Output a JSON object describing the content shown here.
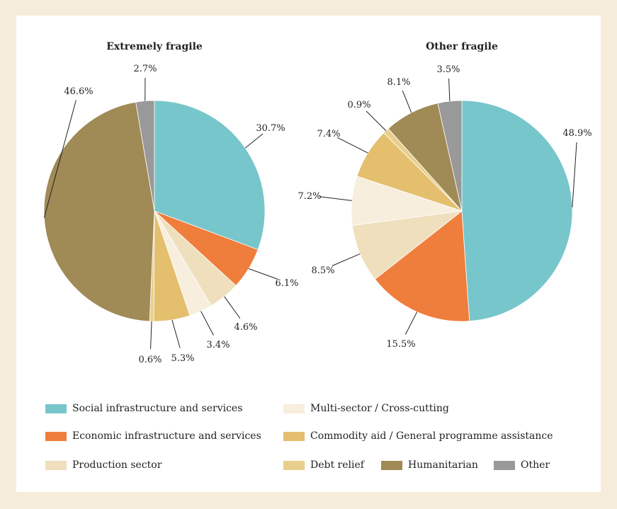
{
  "chart_data": [
    {
      "type": "pie",
      "title": "Extremely fragile",
      "slices": [
        {
          "label": "Social infrastructure and services",
          "value": 30.7,
          "display": "30.7%"
        },
        {
          "label": "Economic infrastructure and services",
          "value": 6.1,
          "display": "6.1%"
        },
        {
          "label": "Production sector",
          "value": 4.6,
          "display": "4.6%"
        },
        {
          "label": "Multi-sector / Cross-cutting",
          "value": 3.4,
          "display": "3.4%"
        },
        {
          "label": "Commodity aid / General programme assistance",
          "value": 5.3,
          "display": "5.3%"
        },
        {
          "label": "Debt relief",
          "value": 0.6,
          "display": "0.6%"
        },
        {
          "label": "Humanitarian",
          "value": 46.6,
          "display": "46.6%"
        },
        {
          "label": "Other",
          "value": 2.7,
          "display": "2.7%"
        }
      ]
    },
    {
      "type": "pie",
      "title": "Other fragile",
      "slices": [
        {
          "label": "Social infrastructure and services",
          "value": 48.9,
          "display": "48.9%"
        },
        {
          "label": "Economic infrastructure and services",
          "value": 15.5,
          "display": "15.5%"
        },
        {
          "label": "Production sector",
          "value": 8.5,
          "display": "8.5%"
        },
        {
          "label": "Multi-sector / Cross-cutting",
          "value": 7.2,
          "display": "7.2%"
        },
        {
          "label": "Commodity aid / General programme assistance",
          "value": 7.4,
          "display": "7.4%"
        },
        {
          "label": "Debt relief",
          "value": 0.9,
          "display": "0.9%"
        },
        {
          "label": "Humanitarian",
          "value": 8.1,
          "display": "8.1%"
        },
        {
          "label": "Other",
          "value": 3.5,
          "display": "3.5%"
        }
      ]
    }
  ],
  "legend": [
    {
      "label": "Social infrastructure and services",
      "color": "#77c6cb"
    },
    {
      "label": "Economic infrastructure and services",
      "color": "#ef7d3c"
    },
    {
      "label": "Production sector",
      "color": "#efdfbd"
    },
    {
      "label": "Multi-sector / Cross-cutting",
      "color": "#f8eedd"
    },
    {
      "label": "Commodity aid / General programme assistance",
      "color": "#e3bf6e"
    },
    {
      "label": "Debt relief",
      "color": "#e9cf8e"
    },
    {
      "label": "Humanitarian",
      "color": "#a08a55"
    },
    {
      "label": "Other",
      "color": "#999999"
    }
  ]
}
